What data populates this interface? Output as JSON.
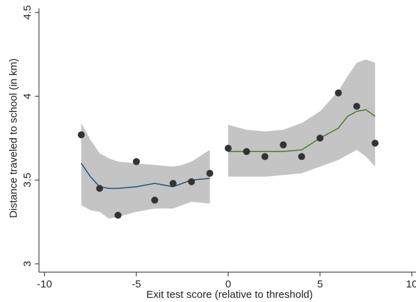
{
  "chart_data": {
    "type": "scatter",
    "x_label": "Exit test score (relative to threshold)",
    "y_label": "Distance traveled to school (in km)",
    "xlim": [
      -10,
      10
    ],
    "ylim": [
      3,
      4.5
    ],
    "xticks": [
      -10,
      -5,
      0,
      5,
      10
    ],
    "yticks": [
      3,
      3.5,
      4,
      4.5
    ],
    "points": {
      "color": "#333333",
      "x": [
        -8,
        -7,
        -6,
        -5,
        -4,
        -3,
        -2,
        -1,
        0,
        1,
        2,
        3,
        4,
        5,
        6,
        7,
        8
      ],
      "values": [
        3.77,
        3.45,
        3.29,
        3.61,
        3.38,
        3.48,
        3.49,
        3.54,
        3.69,
        3.67,
        3.64,
        3.71,
        3.64,
        3.75,
        4.02,
        3.94,
        3.72
      ]
    },
    "fits": [
      {
        "color": "#1f4e79",
        "band_color": "#c4c4c4",
        "x": [
          -8,
          -7.5,
          -7,
          -6.5,
          -6,
          -5,
          -4,
          -3,
          -2.5,
          -2,
          -1
        ],
        "values": [
          3.6,
          3.52,
          3.46,
          3.45,
          3.45,
          3.46,
          3.48,
          3.46,
          3.48,
          3.5,
          3.51
        ],
        "ci_upper": [
          3.84,
          3.74,
          3.66,
          3.63,
          3.61,
          3.6,
          3.59,
          3.58,
          3.59,
          3.61,
          3.68
        ],
        "ci_lower": [
          3.35,
          3.32,
          3.31,
          3.27,
          3.28,
          3.31,
          3.33,
          3.33,
          3.35,
          3.37,
          3.36
        ]
      },
      {
        "color": "#4a7a2a",
        "band_color": "#c4c4c4",
        "x": [
          0,
          1,
          2,
          3,
          4,
          5,
          6,
          6.5,
          7,
          7.5,
          8
        ],
        "values": [
          3.67,
          3.67,
          3.67,
          3.67,
          3.68,
          3.75,
          3.81,
          3.88,
          3.91,
          3.92,
          3.88
        ],
        "ci_upper": [
          3.83,
          3.8,
          3.79,
          3.8,
          3.84,
          3.91,
          4.03,
          4.12,
          4.2,
          4.22,
          4.2
        ],
        "ci_lower": [
          3.52,
          3.52,
          3.52,
          3.53,
          3.54,
          3.58,
          3.62,
          3.65,
          3.68,
          3.64,
          3.58
        ]
      }
    ]
  }
}
